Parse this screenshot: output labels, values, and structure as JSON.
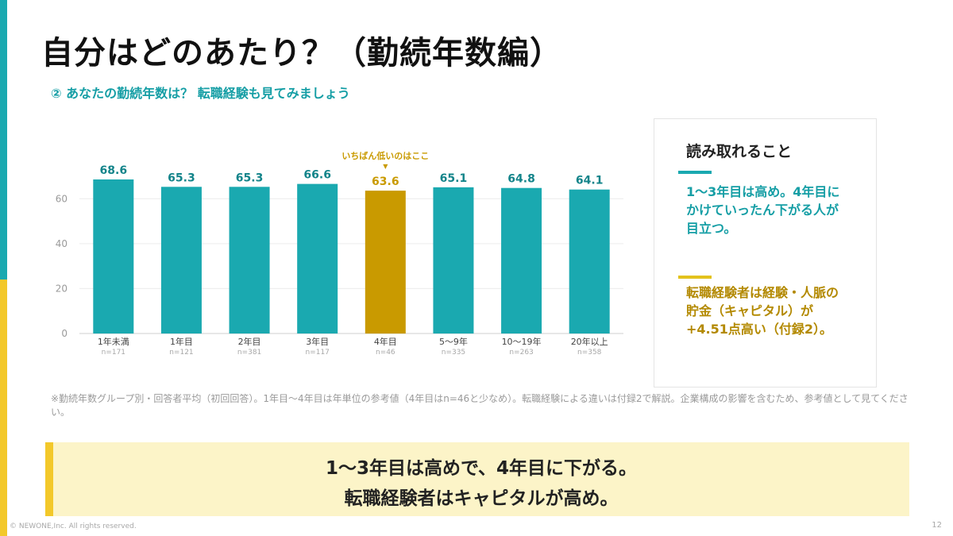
{
  "slide": {
    "title": "自分はどのあたり？（勤続年数編）",
    "subtitle": "② あなたの勤続年数は？ 転職経験も見てみましょう",
    "note": "※勤続年数グループ別・回答者平均（初回回答）。1年目〜4年目は年単位の参考値（4年目はn=46と少なめ）。転職経験による違いは付録2で解説。企業構成の影響を含むため、参考値として見てください。",
    "copyright": "© NEWONE,Inc.  All rights reserved.",
    "page_number": "12"
  },
  "takeaway": {
    "heading": "読み取れること",
    "point1": "1〜3年目は高め。4年目にかけていったん下がる人が目立つ。",
    "point2": "転職経験者は経験・人脈の貯金（キャピタル）が+4.51点高い（付録2）。",
    "accent_teal": "#1aa9b0",
    "accent_gold": "#e3c21c"
  },
  "banner": {
    "line1": "1〜3年目は高めで、4年目に下がる。",
    "line2": "転職経験者はキャピタルが高め。"
  },
  "chart_data": {
    "type": "bar",
    "categories": [
      "1年未満",
      "1年目",
      "2年目",
      "3年目",
      "4年目",
      "5〜9年",
      "10〜19年",
      "20年以上"
    ],
    "sample_sizes": [
      "n=171",
      "n=121",
      "n=381",
      "n=117",
      "n=46",
      "n=335",
      "n=263",
      "n=358"
    ],
    "values": [
      68.6,
      65.3,
      65.3,
      66.6,
      63.6,
      65.1,
      64.8,
      64.1
    ],
    "value_labels": [
      "68.6",
      "65.3",
      "65.3",
      "66.6",
      "63.6",
      "65.1",
      "64.8",
      "64.1"
    ],
    "ylim": [
      0,
      70
    ],
    "yticks": [
      0,
      20,
      40,
      60
    ],
    "grid": true,
    "highlight_index": 4,
    "annotation": "いちばん低いのはここ",
    "annotation_marker": "▼",
    "bar_color": "#1aa9b0",
    "highlight_color": "#c99a00"
  }
}
